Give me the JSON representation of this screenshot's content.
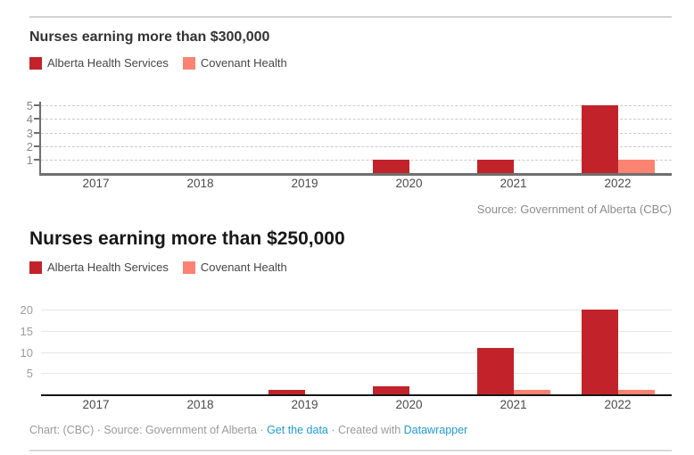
{
  "colors": {
    "alberta_red": "#c2232a",
    "covenant_salmon": "#fc8372",
    "link_blue": "#1d9bd7"
  },
  "chart_data": [
    {
      "type": "bar",
      "title": "Nurses earning more than $300,000",
      "categories": [
        "2017",
        "2018",
        "2019",
        "2020",
        "2021",
        "2022"
      ],
      "series": [
        {
          "name": "Alberta Health Services",
          "color": "#c2232a",
          "values": [
            0,
            0,
            0,
            1,
            1,
            5
          ]
        },
        {
          "name": "Covenant Health",
          "color": "#fc8372",
          "values": [
            0,
            0,
            0,
            0,
            0,
            1
          ]
        }
      ],
      "yticks": [
        1,
        2,
        3,
        4,
        5
      ],
      "ylim": [
        0,
        5
      ],
      "grid": "dashed",
      "legend_position": "top",
      "source": "Source: Government of Alberta (CBC)"
    },
    {
      "type": "bar",
      "title": "Nurses earning more than $250,000",
      "categories": [
        "2017",
        "2018",
        "2019",
        "2020",
        "2021",
        "2022"
      ],
      "series": [
        {
          "name": "Alberta Health Services",
          "color": "#c2232a",
          "values": [
            0,
            0,
            1,
            2,
            11,
            20
          ]
        },
        {
          "name": "Covenant Health",
          "color": "#fc8372",
          "values": [
            0,
            0,
            0,
            0,
            1,
            1
          ]
        }
      ],
      "yticks": [
        5,
        10,
        15,
        20
      ],
      "ylim": [
        0,
        21
      ],
      "grid": "solid",
      "legend_position": "top",
      "source": ""
    }
  ],
  "footer": {
    "parts": [
      {
        "type": "text",
        "name": "footer-text-chart-source",
        "text": "Chart: (CBC) · Source: Government of Alberta · "
      },
      {
        "type": "link",
        "name": "get-the-data-link",
        "text": "Get the data"
      },
      {
        "type": "text",
        "name": "footer-text-created-with",
        "text": " · Created with "
      },
      {
        "type": "link",
        "name": "datawrapper-link",
        "text": "Datawrapper"
      }
    ]
  }
}
